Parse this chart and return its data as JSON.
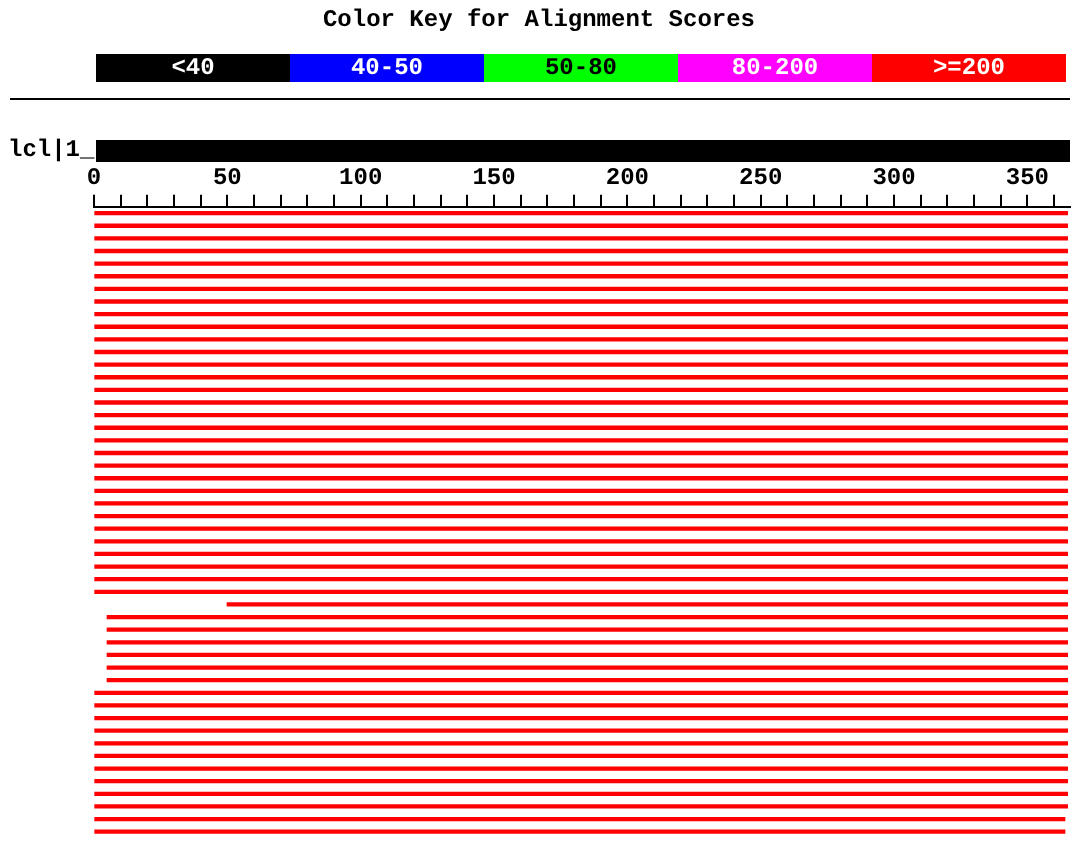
{
  "chart_data": [
    {
      "type": "other",
      "title": "Color Key for Alignment Scores",
      "categories": [
        "<40",
        "40-50",
        "50-80",
        "80-200",
        ">=200"
      ],
      "colors": [
        "#000000",
        "#0000ff",
        "#00ff00",
        "#ff00ff",
        "#ff0000"
      ]
    },
    {
      "type": "bar",
      "orientation": "horizontal",
      "annotations": [
        "lcl|1_"
      ],
      "categories": [
        null,
        null,
        null,
        null,
        null,
        null,
        null,
        null,
        null,
        null,
        null,
        null,
        null,
        null,
        null,
        null,
        null,
        null,
        null,
        null,
        null,
        null,
        null,
        null,
        null,
        null,
        null,
        null,
        null,
        null,
        null,
        null,
        null,
        null,
        null,
        null,
        null,
        null,
        null,
        null,
        null,
        null,
        null,
        null,
        null,
        null,
        null,
        null,
        null,
        null
      ],
      "tick_labels": "x",
      "xlim": [
        0,
        366
      ],
      "xticks": [
        0,
        {
          "value": 10,
          "label": null
        },
        {
          "value": 20,
          "label": null
        },
        {
          "value": 30,
          "label": null
        },
        {
          "value": 40,
          "label": null
        },
        50,
        {
          "value": 60,
          "label": null
        },
        {
          "value": 70,
          "label": null
        },
        {
          "value": 80,
          "label": null
        },
        {
          "value": 90,
          "label": null
        },
        100,
        {
          "value": 110,
          "label": null
        },
        {
          "value": 120,
          "label": null
        },
        {
          "value": 130,
          "label": null
        },
        {
          "value": 140,
          "label": null
        },
        150,
        {
          "value": 160,
          "label": null
        },
        {
          "value": 170,
          "label": null
        },
        {
          "value": 180,
          "label": null
        },
        {
          "value": 190,
          "label": null
        },
        200,
        {
          "value": 210,
          "label": null
        },
        {
          "value": 220,
          "label": null
        },
        {
          "value": 230,
          "label": null
        },
        {
          "value": 240,
          "label": null
        },
        250,
        {
          "value": 260,
          "label": null
        },
        {
          "value": 270,
          "label": null
        },
        {
          "value": 280,
          "label": null
        },
        {
          "value": 290,
          "label": null
        },
        300,
        {
          "value": 310,
          "label": null
        },
        {
          "value": 320,
          "label": null
        },
        {
          "value": 330,
          "label": null
        },
        {
          "value": 340,
          "label": null
        },
        350,
        {
          "value": 360,
          "label": null
        }
      ],
      "series": [
        {
          "color": "#ff0000",
          "base": [
            0,
            0,
            0,
            0,
            0,
            0,
            0,
            0,
            0,
            0,
            0,
            0,
            0,
            0,
            0,
            0,
            0,
            0,
            0,
            0,
            0,
            0,
            0,
            0,
            0,
            0,
            0,
            0,
            0,
            0,
            0,
            50,
            5,
            5,
            5,
            5,
            5,
            5,
            0,
            0,
            0,
            0,
            0,
            0,
            0,
            0,
            0,
            0,
            0,
            0
          ],
          "values": [
            365,
            365,
            365,
            365,
            365,
            365,
            365,
            365,
            365,
            365,
            365,
            365,
            365,
            365,
            365,
            365,
            365,
            365,
            365,
            365,
            365,
            365,
            365,
            365,
            365,
            365,
            365,
            365,
            365,
            365,
            365,
            315,
            360,
            360,
            360,
            360,
            360,
            360,
            365,
            365,
            365,
            365,
            365,
            365,
            365,
            365,
            365,
            365,
            364,
            364
          ]
        }
      ]
    }
  ]
}
